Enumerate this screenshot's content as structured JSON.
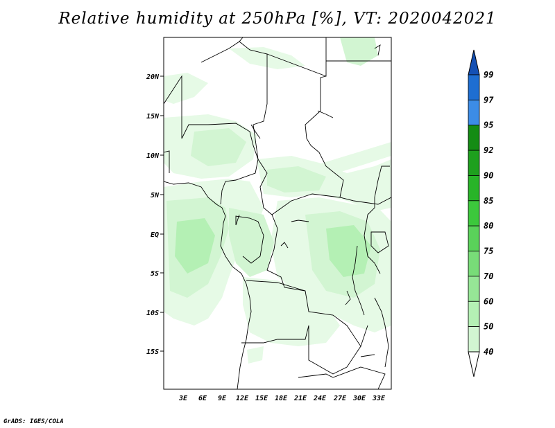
{
  "title": "Relative humidity at 250hPa [%], VT: 2020042021",
  "credit": "GrADS: IGES/COLA",
  "map": {
    "lat_labels": [
      "20N",
      "15N",
      "10N",
      "5N",
      "EQ",
      "5S",
      "10S",
      "15S"
    ],
    "lon_labels": [
      "3E",
      "6E",
      "9E",
      "12E",
      "15E",
      "18E",
      "21E",
      "24E",
      "27E",
      "30E",
      "33E"
    ]
  },
  "colorbar": {
    "levels": [
      "40",
      "50",
      "60",
      "70",
      "75",
      "80",
      "85",
      "90",
      "92",
      "95",
      "97",
      "99"
    ],
    "colors": [
      "#e6fae6",
      "#d2f5d2",
      "#b4f0b4",
      "#96e696",
      "#78dc78",
      "#5ad25a",
      "#3cc83c",
      "#28b428",
      "#1ea01e",
      "#148c14",
      "#3c8ce6",
      "#1e6ed2",
      "#1450b4"
    ]
  }
}
